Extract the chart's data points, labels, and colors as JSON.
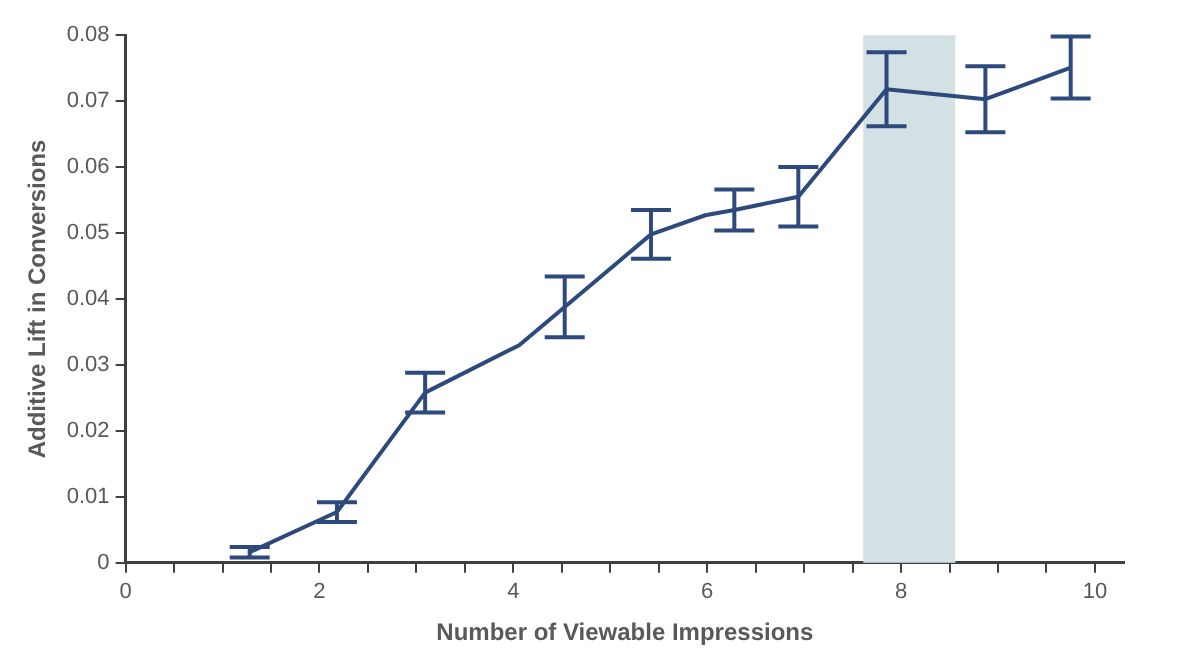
{
  "chart_data": {
    "type": "line",
    "xlabel": "Number of Viewable Impressions",
    "ylabel": "Additive Lift in Conversions",
    "x": [
      1.28,
      2.18,
      3.09,
      4.06,
      4.53,
      5.42,
      5.98,
      6.28,
      6.94,
      7.85,
      8.87,
      9.75
    ],
    "values": [
      0.0016,
      0.0077,
      0.0258,
      0.033,
      0.0388,
      0.0498,
      0.0527,
      0.0535,
      0.0555,
      0.0718,
      0.0703,
      0.0751
    ],
    "errors": [
      0.0008,
      0.0015,
      0.003,
      null,
      0.0046,
      0.0037,
      null,
      0.0031,
      0.0045,
      0.0056,
      0.005,
      0.0047
    ],
    "color": "#2e4a7d",
    "marker": "none",
    "line_style": "solid",
    "grid": false,
    "xlim": [
      0,
      10.3
    ],
    "ylim": [
      0,
      0.08
    ],
    "xticks": [
      0,
      {
        "value": 0.5,
        "label": null
      },
      {
        "value": 1,
        "label": null
      },
      {
        "value": 1.5,
        "label": null
      },
      2,
      {
        "value": 2.5,
        "label": null
      },
      {
        "value": 3,
        "label": null
      },
      {
        "value": 3.5,
        "label": null
      },
      4,
      {
        "value": 4.5,
        "label": null
      },
      {
        "value": 5,
        "label": null
      },
      {
        "value": 5.5,
        "label": null
      },
      6,
      {
        "value": 6.5,
        "label": null
      },
      {
        "value": 7,
        "label": null
      },
      {
        "value": 7.5,
        "label": null
      },
      8,
      {
        "value": 8.5,
        "label": null
      },
      {
        "value": 9,
        "label": null
      },
      {
        "value": 9.5,
        "label": null
      },
      10
    ],
    "yticks": [
      0,
      0.01,
      0.02,
      0.03,
      0.04,
      0.05,
      0.06,
      0.07,
      0.08
    ],
    "bands": [
      {
        "axis": "x",
        "from": 7.61,
        "to": 8.56,
        "color": "#d3e1e5"
      }
    ]
  }
}
